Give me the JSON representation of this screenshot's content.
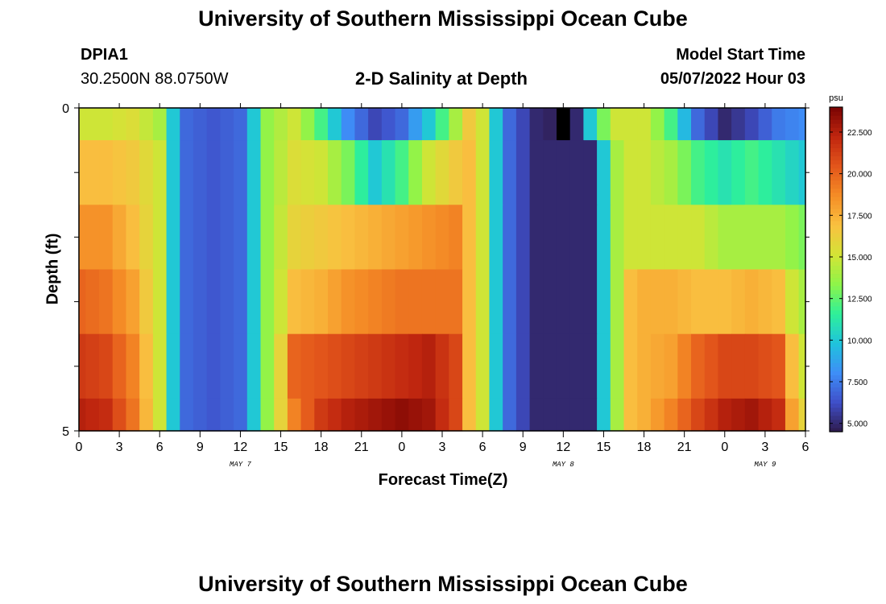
{
  "title": "University of Southern Mississippi Ocean Cube",
  "station": {
    "id": "DPIA1",
    "coords": "30.2500N  88.0750W"
  },
  "subtitle": "2-D Salinity at Depth",
  "model_start": {
    "label": "Model Start Time",
    "value": "05/07/2022 Hour 03"
  },
  "footer_title": "University of Southern Mississippi Ocean Cube",
  "colors": {
    "colormap": [
      "#2e1a4b",
      "#3f4fc9",
      "#3e8ef7",
      "#1fc3dc",
      "#2ef09a",
      "#8ef449",
      "#d3e436",
      "#f9c140",
      "#f58d26",
      "#e3561b",
      "#c0260f",
      "#7a0403"
    ],
    "missing": "#000000"
  },
  "chart_data": {
    "type": "heatmap",
    "title": "2-D Salinity at Depth",
    "xlabel": "Forecast Time(Z)",
    "ylabel": "Depth (ft)",
    "y_tick_labels": [
      "0",
      "5"
    ],
    "ylim": [
      0,
      5
    ],
    "xlim_hours": [
      0,
      54
    ],
    "x_tick_labels": [
      "0",
      "3",
      "6",
      "9",
      "12",
      "15",
      "18",
      "21",
      "0",
      "3",
      "6",
      "9",
      "12",
      "15",
      "18",
      "21",
      "0",
      "3",
      "6"
    ],
    "date_labels": [
      {
        "text": "MAY 7",
        "hour": 12
      },
      {
        "text": "MAY 8",
        "hour": 36
      },
      {
        "text": "MAY 9",
        "hour": 51
      }
    ],
    "colorbar": {
      "unit": "psu",
      "range": [
        4.5,
        24
      ],
      "tick_labels": [
        "22.500",
        "20.000",
        "17.500",
        "15.000",
        "12.500",
        "10.000",
        "7.500",
        "5.000"
      ],
      "tick_values": [
        22.5,
        20,
        17.5,
        15,
        12.5,
        10,
        7.5,
        5
      ]
    },
    "depth_rows": [
      {
        "top": 0.0,
        "bottom": 0.5,
        "key_hours": [
          0,
          2,
          4,
          6,
          7,
          8,
          10,
          12,
          13,
          14,
          16,
          18,
          20,
          22,
          24,
          26,
          28,
          29,
          30,
          31,
          32,
          34,
          35,
          36,
          37,
          38,
          39,
          40,
          41,
          42,
          44,
          46,
          48,
          50,
          52,
          54
        ],
        "values": [
          15,
          15,
          15.5,
          14,
          10,
          7,
          6.5,
          7,
          10,
          13.5,
          15,
          12,
          8,
          6,
          7,
          10,
          14,
          16.5,
          15,
          10,
          7,
          5,
          4.8,
          null,
          5,
          10,
          13,
          15,
          15,
          15,
          12,
          7,
          5,
          6,
          7.5,
          8
        ]
      },
      {
        "top": 0.5,
        "bottom": 1.5,
        "key_hours": [
          0,
          2,
          4,
          6,
          7,
          8,
          10,
          12,
          13,
          14,
          16,
          18,
          20,
          22,
          24,
          26,
          28,
          29,
          30,
          31,
          32,
          34,
          36,
          38,
          39,
          40,
          41,
          42,
          44,
          46,
          48,
          50,
          52,
          54
        ],
        "values": [
          17,
          17,
          16.5,
          15,
          10,
          7,
          6.5,
          7,
          10,
          13.5,
          15.5,
          15,
          13,
          10,
          12,
          15,
          16.5,
          17,
          15,
          10,
          7,
          5,
          5,
          5,
          10,
          14,
          15,
          15,
          14,
          12,
          11,
          12,
          11,
          10
        ]
      },
      {
        "top": 1.5,
        "bottom": 2.5,
        "key_hours": [
          0,
          2,
          4,
          6,
          7,
          8,
          10,
          12,
          13,
          14,
          16,
          18,
          20,
          22,
          24,
          26,
          28,
          29,
          30,
          31,
          32,
          34,
          36,
          38,
          39,
          40,
          41,
          42,
          44,
          46,
          48,
          50,
          52,
          54
        ],
        "values": [
          18.5,
          18.5,
          17,
          15,
          10,
          7,
          6.5,
          7,
          10,
          13.5,
          16,
          16.5,
          17,
          17.5,
          18,
          18.5,
          19,
          17,
          15,
          10,
          7,
          5,
          5,
          5,
          10,
          14,
          15,
          15,
          15,
          15,
          14,
          14,
          14,
          13
        ]
      },
      {
        "top": 2.5,
        "bottom": 3.5,
        "key_hours": [
          0,
          2,
          4,
          6,
          7,
          8,
          10,
          12,
          13,
          14,
          15,
          16,
          18,
          20,
          22,
          24,
          26,
          28,
          29,
          30,
          31,
          32,
          34,
          36,
          38,
          39,
          40,
          41,
          42,
          44,
          46,
          48,
          50,
          52,
          53,
          54
        ],
        "values": [
          20,
          19.5,
          18,
          15,
          10,
          7,
          6.5,
          7,
          10,
          13.5,
          15,
          17,
          17.5,
          18.5,
          19,
          19.5,
          19.5,
          19.5,
          17,
          15,
          10,
          7,
          5,
          5,
          5,
          10,
          14,
          17,
          17.5,
          17.5,
          17,
          17,
          17.5,
          17,
          15,
          14
        ]
      },
      {
        "top": 3.5,
        "bottom": 4.5,
        "key_hours": [
          0,
          2,
          4,
          6,
          7,
          8,
          10,
          12,
          13,
          14,
          15,
          16,
          18,
          20,
          22,
          24,
          26,
          28,
          29,
          30,
          31,
          32,
          34,
          36,
          38,
          39,
          40,
          41,
          42,
          44,
          46,
          48,
          50,
          52,
          53,
          54
        ],
        "values": [
          21.5,
          21,
          19,
          15,
          10,
          7,
          6.5,
          7,
          10,
          13.5,
          16,
          20,
          20.5,
          21,
          21.5,
          22,
          22.5,
          21,
          17,
          15,
          10,
          7,
          5,
          5,
          5,
          10,
          14,
          17,
          17.5,
          18,
          20,
          21,
          21,
          20.5,
          17,
          15
        ]
      },
      {
        "top": 4.5,
        "bottom": 5.0,
        "key_hours": [
          0,
          2,
          4,
          6,
          7,
          8,
          10,
          12,
          13,
          14,
          15,
          16,
          18,
          20,
          22,
          24,
          26,
          28,
          29,
          30,
          31,
          32,
          34,
          36,
          38,
          39,
          40,
          41,
          42,
          44,
          46,
          48,
          50,
          52,
          53,
          54
        ],
        "values": [
          22.5,
          22,
          19.5,
          15,
          10,
          7,
          6.5,
          7,
          10,
          13.5,
          16,
          19,
          21.5,
          22.5,
          23,
          23.5,
          23,
          21,
          17,
          15,
          10,
          7,
          5,
          5,
          5,
          10,
          14,
          17,
          17.5,
          19,
          21,
          22.5,
          23,
          22,
          18,
          16
        ]
      }
    ]
  }
}
